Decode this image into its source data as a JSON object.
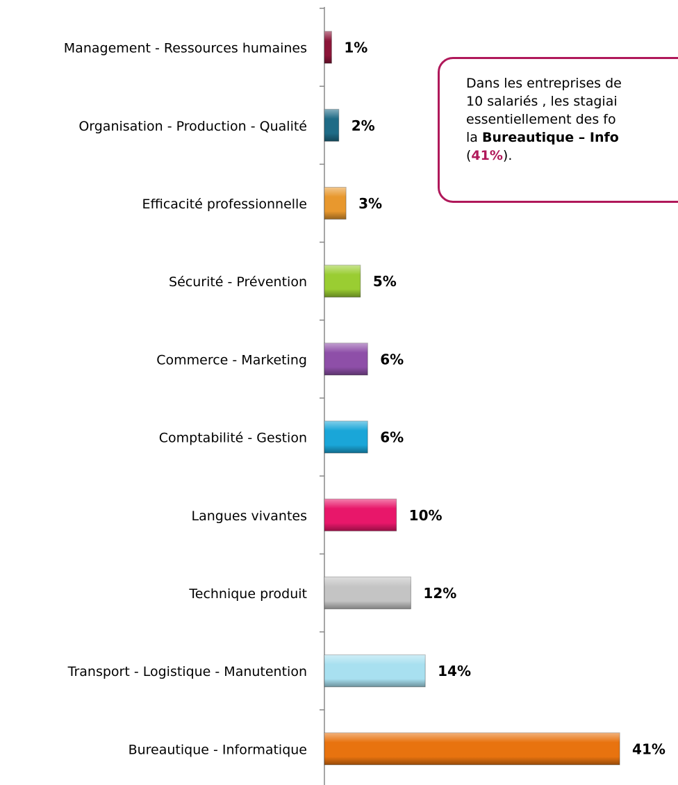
{
  "chart_data": {
    "type": "hbar",
    "categories": [
      "Management - Ressources humaines",
      "Organisation - Production - Qualité",
      "Efficacité professionnelle",
      "Sécurité - Prévention",
      "Commerce - Marketing",
      "Comptabilité - Gestion",
      "Langues vivantes",
      "Technique produit",
      "Transport - Logistique - Manutention",
      "Bureautique - Informatique"
    ],
    "values": [
      1,
      2,
      3,
      5,
      6,
      6,
      10,
      12,
      14,
      41
    ],
    "value_labels": [
      "1%",
      "2%",
      "3%",
      "5%",
      "6%",
      "6%",
      "10%",
      "12%",
      "14%",
      "41%"
    ],
    "colors": [
      "#8b1538",
      "#1f6b86",
      "#e8982e",
      "#9acd32",
      "#8e4fa8",
      "#1aa6d8",
      "#e8176a",
      "#c4c4c4",
      "#a8e0f0",
      "#e8730f"
    ],
    "xlim": [
      0,
      49
    ],
    "annotation": [
      "Dans les entreprises de",
      "10 salariés , les stagiai",
      "essentiellement des fo",
      "la ",
      "Bureautique – Info",
      "(",
      "41%",
      ")."
    ]
  }
}
